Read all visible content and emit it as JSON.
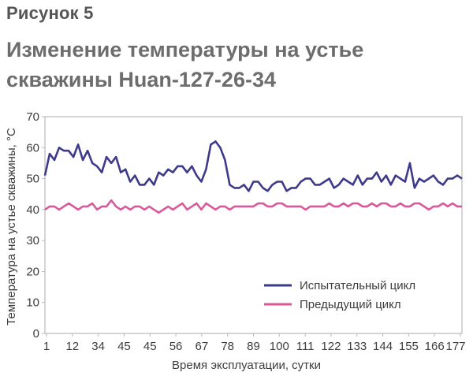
{
  "figure": {
    "label": "Рисунок 5",
    "title": "Изменение температуры на устье скважины Huan-127-26-34"
  },
  "colors": {
    "test_cycle": "#3e3a8a",
    "previous_cycle": "#d95a9a",
    "plot_border": "#b9b9b9",
    "plot_bg": "#ffffff"
  },
  "chart_data": {
    "type": "line",
    "title": "Изменение температуры на устье скважины Huan-127-26-34",
    "xlabel": "Время эксплуатации, сутки",
    "ylabel": "Температура на устье скважины, °С",
    "ylim": [
      0,
      70
    ],
    "yticks": [
      0,
      10,
      20,
      30,
      40,
      50,
      60,
      70
    ],
    "xtick_labels": [
      "1",
      "12",
      "34",
      "45",
      "45",
      "56",
      "67",
      "78",
      "89",
      "100",
      "111",
      "122",
      "133",
      "144",
      "155",
      "166",
      "177"
    ],
    "xlim": [
      1,
      177
    ],
    "grid": false,
    "legend_position": "bottom-right",
    "series": [
      {
        "name": "Испытательный цикл",
        "color": "#3e3a8a",
        "x": [
          1,
          3,
          5,
          7,
          9,
          11,
          13,
          15,
          17,
          19,
          21,
          23,
          25,
          27,
          29,
          31,
          33,
          35,
          37,
          39,
          41,
          43,
          45,
          47,
          49,
          51,
          53,
          55,
          57,
          59,
          61,
          63,
          65,
          67,
          69,
          71,
          73,
          75,
          77,
          79,
          81,
          83,
          85,
          87,
          89,
          91,
          93,
          95,
          97,
          99,
          101,
          103,
          105,
          107,
          109,
          111,
          113,
          115,
          117,
          119,
          121,
          123,
          125,
          127,
          129,
          131,
          133,
          135,
          137,
          139,
          141,
          143,
          145,
          147,
          149,
          151,
          153,
          155,
          157,
          159,
          161,
          163,
          165,
          167,
          169,
          171,
          173,
          175,
          177
        ],
        "values": [
          51,
          58,
          56,
          60,
          59,
          59,
          57,
          61,
          56,
          59,
          55,
          54,
          52,
          57,
          55,
          57,
          52,
          53,
          49,
          51,
          48,
          48,
          50,
          48,
          52,
          51,
          53,
          52,
          54,
          54,
          52,
          54,
          51,
          49,
          53,
          61,
          62,
          60,
          56,
          48,
          47,
          47,
          48,
          46,
          49,
          49,
          47,
          46,
          48,
          49,
          49,
          46,
          47,
          47,
          49,
          50,
          50,
          48,
          48,
          49,
          50,
          47,
          48,
          50,
          49,
          48,
          51,
          48,
          50,
          50,
          52,
          49,
          51,
          48,
          51,
          50,
          49,
          55,
          47,
          50,
          49,
          50,
          51,
          49,
          48,
          50,
          50,
          51,
          50
        ]
      },
      {
        "name": "Предыдущий цикл",
        "color": "#d95a9a",
        "x": [
          1,
          3,
          5,
          7,
          9,
          11,
          13,
          15,
          17,
          19,
          21,
          23,
          25,
          27,
          29,
          31,
          33,
          35,
          37,
          39,
          41,
          43,
          45,
          47,
          49,
          51,
          53,
          55,
          57,
          59,
          61,
          63,
          65,
          67,
          69,
          71,
          73,
          75,
          77,
          79,
          81,
          83,
          85,
          87,
          89,
          91,
          93,
          95,
          97,
          99,
          101,
          103,
          105,
          107,
          109,
          111,
          113,
          115,
          117,
          119,
          121,
          123,
          125,
          127,
          129,
          131,
          133,
          135,
          137,
          139,
          141,
          143,
          145,
          147,
          149,
          151,
          153,
          155,
          157,
          159,
          161,
          163,
          165,
          167,
          169,
          171,
          173,
          175,
          177
        ],
        "values": [
          40,
          41,
          41,
          40,
          41,
          42,
          41,
          40,
          41,
          41,
          42,
          40,
          41,
          41,
          43,
          41,
          40,
          41,
          40,
          41,
          41,
          40,
          41,
          40,
          39,
          40,
          41,
          40,
          41,
          42,
          40,
          41,
          42,
          40,
          42,
          41,
          40,
          41,
          41,
          40,
          41,
          41,
          41,
          41,
          41,
          42,
          42,
          41,
          41,
          42,
          42,
          41,
          41,
          41,
          41,
          40,
          41,
          41,
          41,
          41,
          42,
          41,
          41,
          42,
          41,
          42,
          42,
          41,
          41,
          42,
          41,
          42,
          42,
          41,
          41,
          42,
          41,
          41,
          42,
          42,
          41,
          40,
          41,
          41,
          42,
          41,
          42,
          41,
          41
        ]
      }
    ]
  }
}
